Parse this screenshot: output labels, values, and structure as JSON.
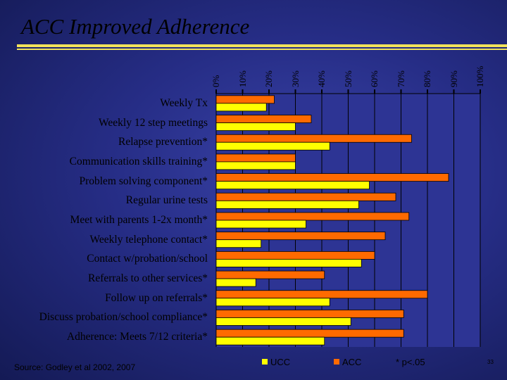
{
  "title": "ACC Improved Adherence",
  "source": "Source: Godley et al 2002, 2007",
  "footnote": "* p<.05",
  "page_number": "33",
  "colors": {
    "ucc": "#ffff00",
    "acc": "#ff6a00",
    "accent_rule": "#f2e35a",
    "plot_background": "#2d3494"
  },
  "chart_data": {
    "type": "bar",
    "orientation": "horizontal",
    "xlim": [
      0,
      100
    ],
    "ticks": [
      "0%",
      "10%",
      "20%",
      "30%",
      "40%",
      "50%",
      "60%",
      "70%",
      "80%",
      "90%",
      "100%"
    ],
    "legend_position": "bottom",
    "categories": [
      "Weekly Tx",
      "Weekly 12 step meetings",
      "Relapse prevention*",
      "Communication skills training*",
      "Problem solving component*",
      "Regular urine tests",
      "Meet with parents 1-2x month*",
      "Weekly telephone contact*",
      "Contact w/probation/school",
      "Referrals to other services*",
      "Follow up on referrals*",
      "Discuss probation/school compliance*",
      "Adherence: Meets 7/12 criteria*"
    ],
    "series": [
      {
        "name": "ACC",
        "values": [
          22,
          36,
          74,
          30,
          88,
          68,
          73,
          64,
          60,
          41,
          80,
          71,
          71
        ]
      },
      {
        "name": "UCC",
        "values": [
          19,
          30,
          43,
          30,
          58,
          54,
          34,
          17,
          55,
          15,
          43,
          51,
          41
        ]
      }
    ]
  }
}
